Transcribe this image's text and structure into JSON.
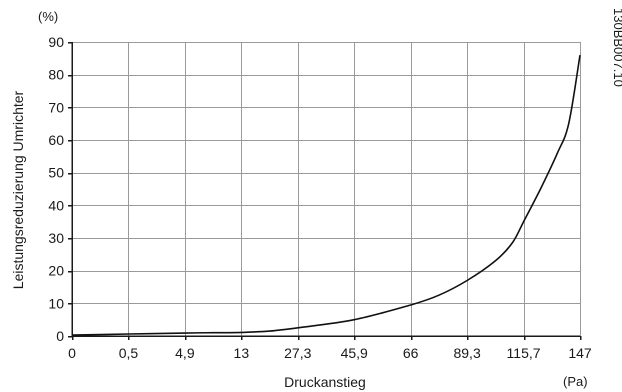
{
  "chart_data": {
    "type": "line",
    "title": "",
    "xlabel": "Druckanstieg",
    "ylabel": "Leistungsreduzierung Umrichter",
    "x_unit": "(Pa)",
    "y_unit": "(%)",
    "reference_code": "130BB007.10",
    "categories": [
      "0",
      "0,5",
      "4,9",
      "13",
      "27,3",
      "45,9",
      "66",
      "89,3",
      "115,7",
      "147"
    ],
    "x_scale": "categorical (evenly spaced tick labels)",
    "ylim": [
      0,
      90
    ],
    "y_ticks": [
      0,
      10,
      20,
      30,
      40,
      50,
      60,
      70,
      80,
      90
    ],
    "grid": true,
    "legend": "none",
    "series": [
      {
        "points": [
          [
            0,
            0.3
          ],
          [
            1,
            0.6
          ],
          [
            2,
            0.9
          ],
          [
            2.5,
            1.0
          ],
          [
            3,
            1.1
          ],
          [
            3.5,
            1.5
          ],
          [
            4,
            2.5
          ],
          [
            5,
            5.0
          ],
          [
            6,
            9.5
          ],
          [
            6.5,
            12.5
          ],
          [
            7,
            17.0
          ],
          [
            7.5,
            23.0
          ],
          [
            7.8,
            28.5
          ],
          [
            8,
            35.0
          ],
          [
            8.3,
            45.0
          ],
          [
            8.6,
            56.0
          ],
          [
            8.8,
            65.0
          ],
          [
            9,
            86.0
          ]
        ]
      }
    ]
  }
}
